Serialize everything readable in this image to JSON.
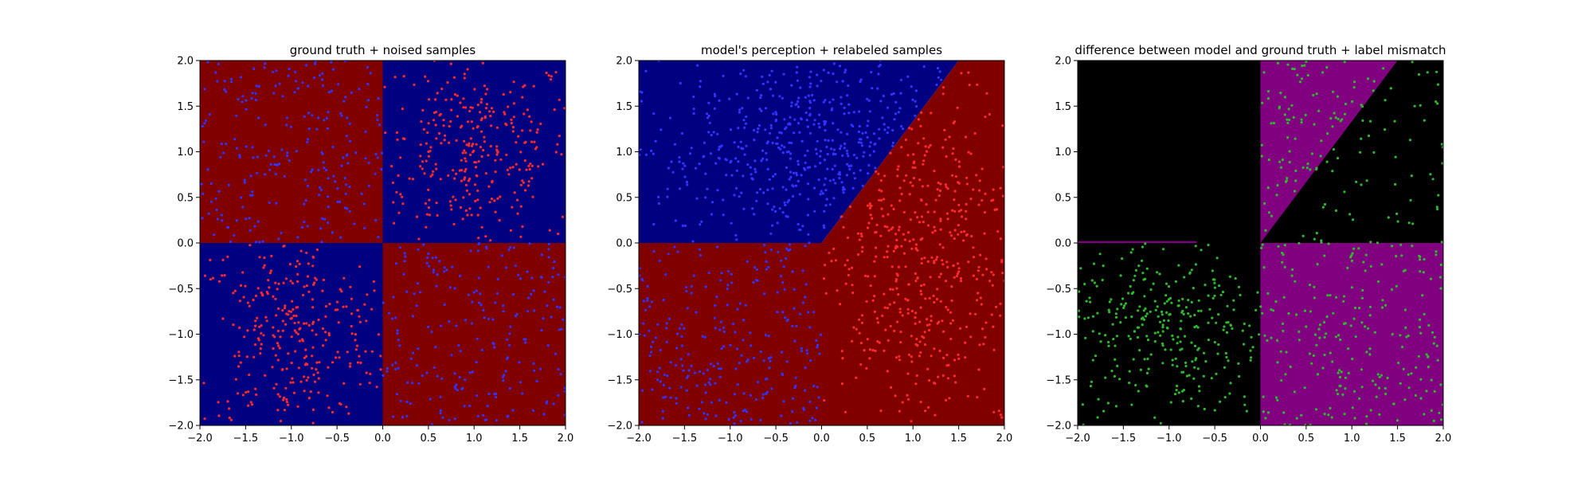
{
  "chart_data": [
    {
      "type": "scatter",
      "title": "ground truth + noised samples",
      "xlim": [
        -2.0,
        2.0
      ],
      "ylim": [
        -2.0,
        2.0
      ],
      "xticks": [
        "−2.0",
        "−1.5",
        "−1.0",
        "−0.5",
        "0.0",
        "0.5",
        "1.0",
        "1.5",
        "2.0"
      ],
      "yticks": [
        "−2.0",
        "−1.5",
        "−1.0",
        "−0.5",
        "0.0",
        "0.5",
        "1.0",
        "1.5",
        "2.0"
      ],
      "grid": false,
      "background_regions": [
        {
          "polygon": [
            [
              -2,
              0
            ],
            [
              0,
              0
            ],
            [
              0,
              2
            ],
            [
              -2,
              2
            ]
          ],
          "color": "#800000"
        },
        {
          "polygon": [
            [
              0,
              0
            ],
            [
              2,
              0
            ],
            [
              2,
              2
            ],
            [
              0,
              2
            ]
          ],
          "color": "#000080"
        },
        {
          "polygon": [
            [
              -2,
              -2
            ],
            [
              0,
              -2
            ],
            [
              0,
              0
            ],
            [
              -2,
              0
            ]
          ],
          "color": "#000080"
        },
        {
          "polygon": [
            [
              0,
              -2
            ],
            [
              2,
              -2
            ],
            [
              2,
              0
            ],
            [
              0,
              0
            ]
          ],
          "color": "#800000"
        }
      ],
      "point_groups": [
        {
          "region": [
            -2,
            0,
            0,
            2
          ],
          "color": "#3333ff",
          "count": 230,
          "bias": "uniform"
        },
        {
          "region": [
            0,
            0,
            2,
            2
          ],
          "color": "#ff2a2a",
          "count": 300,
          "bias": "center"
        },
        {
          "region": [
            -2,
            -2,
            0,
            0
          ],
          "color": "#ff2a2a",
          "count": 290,
          "bias": "center"
        },
        {
          "region": [
            0,
            -2,
            2,
            0
          ],
          "color": "#3333ff",
          "count": 220,
          "bias": "uniform"
        }
      ]
    },
    {
      "type": "scatter",
      "title": "model's perception + relabeled samples",
      "xlim": [
        -2.0,
        2.0
      ],
      "ylim": [
        -2.0,
        2.0
      ],
      "xticks": [
        "−2.0",
        "−1.5",
        "−1.0",
        "−0.5",
        "0.0",
        "0.5",
        "1.0",
        "1.5",
        "2.0"
      ],
      "yticks": [
        "−2.0",
        "−1.5",
        "−1.0",
        "−0.5",
        "0.0",
        "0.5",
        "1.0",
        "1.5",
        "2.0"
      ],
      "grid": false,
      "background_regions": [
        {
          "polygon": [
            [
              -2,
              0
            ],
            [
              0,
              0
            ],
            [
              1.5,
              2
            ],
            [
              -2,
              2
            ]
          ],
          "color": "#000080"
        },
        {
          "polygon": [
            [
              -2,
              -2
            ],
            [
              2,
              -2
            ],
            [
              2,
              2
            ],
            [
              1.5,
              2
            ],
            [
              0,
              0
            ],
            [
              -2,
              0
            ]
          ],
          "color": "#800000"
        }
      ],
      "point_groups": [
        {
          "region": [
            -2,
            0,
            2,
            2
          ],
          "below_line": [
            1.333,
            0
          ],
          "color": "#3333ff",
          "count": 480,
          "bias": "center"
        },
        {
          "region": [
            -2,
            -2,
            0,
            0
          ],
          "color": "#3333ff",
          "count": 260,
          "bias": "uniform"
        },
        {
          "region": [
            0,
            -2,
            2,
            2
          ],
          "above_line": [
            1.333,
            0
          ],
          "color": "#ff2a2a",
          "count": 480,
          "bias": "center"
        }
      ]
    },
    {
      "type": "scatter",
      "title": "difference between model and ground truth + label mismatch",
      "xlim": [
        -2.0,
        2.0
      ],
      "ylim": [
        -2.0,
        2.0
      ],
      "xticks": [
        "−2.0",
        "−1.5",
        "−1.0",
        "−0.5",
        "0.0",
        "0.5",
        "1.0",
        "1.5",
        "2.0"
      ],
      "yticks": [
        "−2.0",
        "−1.5",
        "−1.0",
        "−0.5",
        "0.0",
        "0.5",
        "1.0",
        "1.5",
        "2.0"
      ],
      "grid": false,
      "background_regions": [
        {
          "polygon": [
            [
              -2,
              -2
            ],
            [
              2,
              -2
            ],
            [
              2,
              2
            ],
            [
              -2,
              2
            ]
          ],
          "color": "#000000"
        },
        {
          "polygon": [
            [
              0,
              0
            ],
            [
              1.5,
              2
            ],
            [
              0,
              2
            ]
          ],
          "color": "#800080"
        },
        {
          "polygon": [
            [
              0,
              -2
            ],
            [
              2,
              -2
            ],
            [
              2,
              0
            ],
            [
              0,
              0
            ]
          ],
          "color": "#800080"
        },
        {
          "polygon": [
            [
              -2,
              0.0
            ],
            [
              -0.7,
              0.0
            ],
            [
              -0.7,
              0.02
            ],
            [
              -2,
              0.02
            ]
          ],
          "color": "#800080"
        }
      ],
      "point_groups": [
        {
          "region": [
            0,
            0,
            2,
            2
          ],
          "below_line_inv": [
            1.333,
            0
          ],
          "color": "#2eb82e",
          "count": 90,
          "bias": "uniform"
        },
        {
          "region": [
            0,
            0,
            2,
            2
          ],
          "above_line": [
            1.333,
            0
          ],
          "color": "#2eb82e",
          "count": 60,
          "bias": "uniform"
        },
        {
          "region": [
            -2,
            -2,
            0,
            0
          ],
          "color": "#2eb82e",
          "count": 300,
          "bias": "center"
        },
        {
          "region": [
            0,
            -2,
            2,
            0
          ],
          "color": "#2eb82e",
          "count": 230,
          "bias": "uniform"
        }
      ]
    }
  ]
}
